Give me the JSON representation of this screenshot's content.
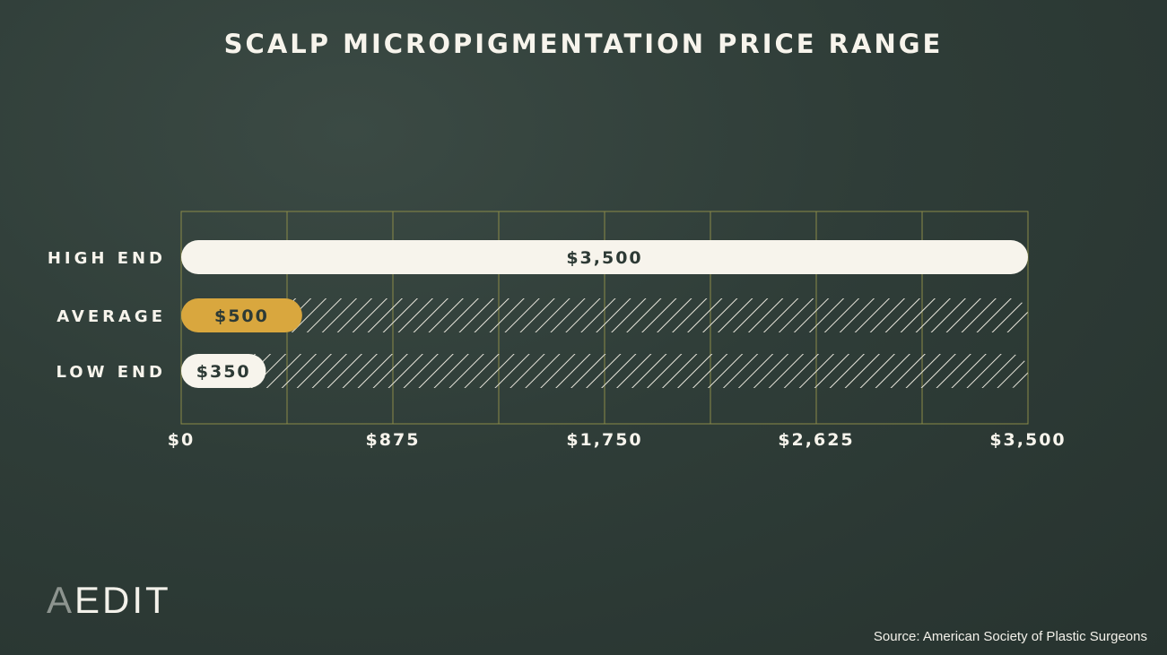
{
  "chart_data": {
    "type": "bar",
    "orientation": "horizontal",
    "title": "SCALP MICROPIGMENTATION PRICE RANGE",
    "categories": [
      "HIGH END",
      "AVERAGE",
      "LOW END"
    ],
    "values": [
      3500,
      500,
      350
    ],
    "value_labels": [
      "$3,500",
      "$500",
      "$350"
    ],
    "xlim": [
      0,
      3500
    ],
    "xticks": [
      0,
      875,
      1750,
      2625,
      3500
    ],
    "xtick_labels": [
      "$0",
      "$875",
      "$1,750",
      "$2,625",
      "$3,500"
    ],
    "grid": true,
    "bar_colors": [
      "#f7f4ec",
      "#d9a73e",
      "#f7f4ec"
    ]
  },
  "brand": {
    "logo_a": "A",
    "logo_rest": "EDIT"
  },
  "footer": {
    "source": "Source: American Society of Plastic Surgeons"
  },
  "colors": {
    "background": "#2f3d38",
    "grid": "#8a8a48",
    "text": "#f7f4ec",
    "bar_text": "#2d3a35",
    "accent": "#d9a73e"
  }
}
